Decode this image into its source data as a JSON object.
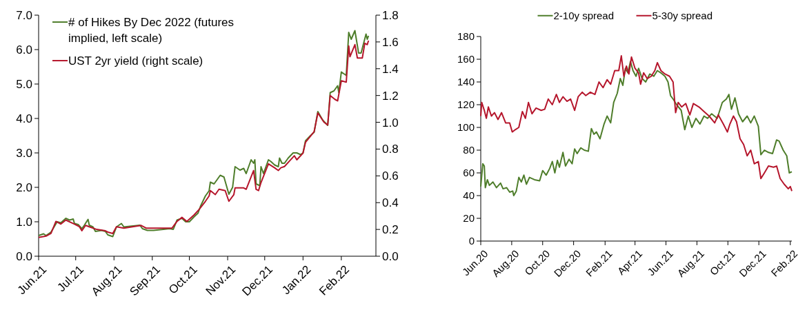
{
  "chart_data": [
    {
      "type": "line",
      "xlim": [
        "2021-06-01",
        "2022-03-01"
      ],
      "xticks": [
        {
          "value": "2021-06-01",
          "label": "Jun.21"
        },
        {
          "value": "2021-07-01",
          "label": "Jul.21"
        },
        {
          "value": "2021-08-01",
          "label": "Aug.21"
        },
        {
          "value": "2021-09-01",
          "label": "Sep.21"
        },
        {
          "value": "2021-10-01",
          "label": "Oct.21"
        },
        {
          "value": "2021-11-01",
          "label": "Nov.21"
        },
        {
          "value": "2021-12-01",
          "label": "Dec.21"
        },
        {
          "value": "2022-01-01",
          "label": "Jan.22"
        },
        {
          "value": "2022-02-01",
          "label": "Feb.22"
        }
      ],
      "ylim": [
        0,
        7
      ],
      "yticks": [
        {
          "value": 0,
          "label": "0.0"
        },
        {
          "value": 1,
          "label": "1.0"
        },
        {
          "value": 2,
          "label": "2.0"
        },
        {
          "value": 3,
          "label": "3.0"
        },
        {
          "value": 4,
          "label": "4.0"
        },
        {
          "value": 5,
          "label": "5.0"
        },
        {
          "value": 6,
          "label": "6.0"
        },
        {
          "value": 7,
          "label": "7.0"
        }
      ],
      "y2lim": [
        0,
        1.8
      ],
      "y2ticks": [
        {
          "value": 0,
          "label": "0.0"
        },
        {
          "value": 0.2,
          "label": "0.2"
        },
        {
          "value": 0.4,
          "label": "0.4"
        },
        {
          "value": 0.6,
          "label": "0.6"
        },
        {
          "value": 0.8,
          "label": "0.8"
        },
        {
          "value": 1,
          "label": "1.0"
        },
        {
          "value": 1.2,
          "label": "1.2"
        },
        {
          "value": 1.4,
          "label": "1.4"
        },
        {
          "value": 1.6,
          "label": "1.6"
        },
        {
          "value": 1.8,
          "label": "1.8"
        }
      ],
      "legend": "top left",
      "line_style": "solid",
      "series": [
        {
          "name": "# of Hikes By Dec 2022 (futures implied, left scale)",
          "color": "#4e7d2a",
          "x": [
            "2021-06-01",
            "2021-06-05",
            "2021-06-07",
            "2021-06-11",
            "2021-06-16",
            "2021-06-19",
            "2021-06-23",
            "2021-06-26",
            "2021-06-29",
            "2021-06-30",
            "2021-07-03",
            "2021-07-06",
            "2021-07-08",
            "2021-07-11",
            "2021-07-12",
            "2021-07-15",
            "2021-07-17",
            "2021-07-22",
            "2021-07-25",
            "2021-07-27",
            "2021-07-31",
            "2021-08-03",
            "2021-08-07",
            "2021-08-09",
            "2021-08-14",
            "2021-08-22",
            "2021-08-24",
            "2021-08-28",
            "2021-09-02",
            "2021-09-10",
            "2021-09-15",
            "2021-09-18",
            "2021-09-21",
            "2021-09-25",
            "2021-09-28",
            "2021-10-01",
            "2021-10-05",
            "2021-10-08",
            "2021-10-10",
            "2021-10-14",
            "2021-10-17",
            "2021-10-18",
            "2021-10-21",
            "2021-10-24",
            "2021-10-26",
            "2021-10-29",
            "2021-10-31",
            "2021-11-02",
            "2021-11-05",
            "2021-11-07",
            "2021-11-11",
            "2021-11-14",
            "2021-11-16",
            "2021-11-19",
            "2021-11-20",
            "2021-11-22",
            "2021-11-23",
            "2021-11-24",
            "2021-11-27",
            "2021-11-28",
            "2021-11-30",
            "2021-12-04",
            "2021-12-06",
            "2021-12-09",
            "2021-12-12",
            "2021-12-13",
            "2021-12-15",
            "2021-12-17",
            "2021-12-20",
            "2021-12-24",
            "2021-12-27",
            "2021-12-30",
            "2022-01-01",
            "2022-01-03",
            "2022-01-07",
            "2022-01-10",
            "2022-01-13",
            "2022-01-17",
            "2022-01-21",
            "2022-01-23",
            "2022-01-26",
            "2022-01-29",
            "2022-01-30",
            "2022-02-01",
            "2022-02-05",
            "2022-02-07",
            "2022-02-09",
            "2022-02-12",
            "2022-02-15",
            "2022-02-17",
            "2022-02-21",
            "2022-02-22",
            "2022-02-23"
          ],
          "values": [
            0.6,
            0.65,
            0.6,
            0.7,
            1.0,
            0.97,
            1.1,
            1.05,
            1.08,
            0.95,
            0.92,
            0.8,
            0.9,
            1.07,
            0.9,
            0.85,
            0.72,
            0.75,
            0.72,
            0.62,
            0.57,
            0.85,
            0.95,
            0.85,
            0.87,
            0.9,
            0.8,
            0.75,
            0.75,
            0.78,
            0.8,
            0.78,
            1.05,
            1.1,
            1.0,
            1.0,
            1.15,
            1.25,
            1.45,
            1.75,
            1.9,
            2.15,
            2.1,
            2.25,
            2.35,
            2.3,
            2.05,
            1.8,
            2.0,
            2.6,
            2.5,
            2.55,
            2.4,
            2.7,
            2.8,
            2.7,
            2.8,
            2.1,
            2.05,
            2.6,
            2.4,
            2.8,
            2.75,
            2.65,
            2.6,
            2.85,
            2.7,
            2.7,
            2.85,
            3.0,
            3.0,
            2.95,
            3.0,
            3.35,
            3.5,
            3.6,
            4.2,
            3.95,
            3.8,
            4.75,
            4.8,
            4.95,
            4.75,
            5.35,
            5.25,
            6.5,
            6.3,
            6.55,
            5.9,
            5.9,
            6.45,
            6.3,
            6.4
          ]
        },
        {
          "name": "UST 2yr yield (right scale)",
          "color": "#b5152b",
          "axis": "y2",
          "x": [
            "2021-06-01",
            "2021-06-07",
            "2021-06-11",
            "2021-06-15",
            "2021-06-19",
            "2021-06-23",
            "2021-06-30",
            "2021-07-04",
            "2021-07-06",
            "2021-07-09",
            "2021-07-12",
            "2021-07-18",
            "2021-07-25",
            "2021-07-27",
            "2021-07-31",
            "2021-08-03",
            "2021-08-09",
            "2021-08-16",
            "2021-08-23",
            "2021-08-27",
            "2021-09-06",
            "2021-09-17",
            "2021-09-21",
            "2021-09-25",
            "2021-09-29",
            "2021-10-05",
            "2021-10-09",
            "2021-10-14",
            "2021-10-17",
            "2021-10-18",
            "2021-10-22",
            "2021-10-25",
            "2021-10-30",
            "2021-11-02",
            "2021-11-06",
            "2021-11-07",
            "2021-11-14",
            "2021-11-16",
            "2021-11-22",
            "2021-11-24",
            "2021-11-26",
            "2021-11-28",
            "2021-12-04",
            "2021-12-09",
            "2021-12-12",
            "2021-12-14",
            "2021-12-17",
            "2021-12-21",
            "2021-12-25",
            "2021-12-27",
            "2022-01-01",
            "2022-01-03",
            "2022-01-10",
            "2022-01-13",
            "2022-01-18",
            "2022-01-21",
            "2022-01-23",
            "2022-01-27",
            "2022-01-29",
            "2022-02-01",
            "2022-02-05",
            "2022-02-07",
            "2022-02-08",
            "2022-02-12",
            "2022-02-14",
            "2022-02-18",
            "2022-02-20",
            "2022-02-22",
            "2022-02-23"
          ],
          "values": [
            0.14,
            0.15,
            0.17,
            0.26,
            0.24,
            0.27,
            0.24,
            0.22,
            0.19,
            0.23,
            0.22,
            0.2,
            0.19,
            0.18,
            0.17,
            0.22,
            0.21,
            0.22,
            0.23,
            0.21,
            0.21,
            0.21,
            0.26,
            0.29,
            0.26,
            0.31,
            0.35,
            0.41,
            0.45,
            0.49,
            0.46,
            0.5,
            0.49,
            0.41,
            0.46,
            0.51,
            0.51,
            0.5,
            0.64,
            0.5,
            0.49,
            0.55,
            0.69,
            0.66,
            0.64,
            0.66,
            0.67,
            0.71,
            0.75,
            0.72,
            0.77,
            0.85,
            0.93,
            1.07,
            1.0,
            0.98,
            1.2,
            1.17,
            1.16,
            1.31,
            1.3,
            1.57,
            1.49,
            1.58,
            1.48,
            1.48,
            1.59,
            1.58,
            1.61
          ]
        }
      ]
    },
    {
      "type": "line",
      "xlim": [
        "2020-06-01",
        "2022-02-04"
      ],
      "xticks": [
        {
          "value": "2020-06-01",
          "label": "Jun.20"
        },
        {
          "value": "2020-08-01",
          "label": "Aug.20"
        },
        {
          "value": "2020-10-01",
          "label": "Oct.20"
        },
        {
          "value": "2020-12-01",
          "label": "Dec.20"
        },
        {
          "value": "2021-02-01",
          "label": "Feb.21"
        },
        {
          "value": "2021-04-01",
          "label": "Apr.21"
        },
        {
          "value": "2021-06-01",
          "label": "Jun.21"
        },
        {
          "value": "2021-08-01",
          "label": "Aug.21"
        },
        {
          "value": "2021-10-01",
          "label": "Oct.21"
        },
        {
          "value": "2021-12-01",
          "label": "Dec.21"
        },
        {
          "value": "2022-02-01",
          "label": "Feb.22"
        }
      ],
      "ylim": [
        0,
        180
      ],
      "yticks": [
        0,
        20,
        40,
        60,
        80,
        100,
        120,
        140,
        160,
        180
      ],
      "legend": "top",
      "line_style": "solid",
      "series": [
        {
          "name": "2-10y spread",
          "color": "#4e7d2a",
          "x": [
            "2020-06-01",
            "2020-06-05",
            "2020-06-08",
            "2020-06-10",
            "2020-06-14",
            "2020-06-18",
            "2020-06-25",
            "2020-07-02",
            "2020-07-10",
            "2020-07-15",
            "2020-07-22",
            "2020-07-28",
            "2020-08-03",
            "2020-08-05",
            "2020-08-10",
            "2020-08-15",
            "2020-08-20",
            "2020-08-25",
            "2020-08-30",
            "2020-09-05",
            "2020-09-15",
            "2020-09-25",
            "2020-10-01",
            "2020-10-08",
            "2020-10-15",
            "2020-10-20",
            "2020-10-25",
            "2020-10-30",
            "2020-11-03",
            "2020-11-10",
            "2020-11-15",
            "2020-11-22",
            "2020-11-28",
            "2020-12-03",
            "2020-12-08",
            "2020-12-15",
            "2020-12-22",
            "2020-12-30",
            "2021-01-05",
            "2021-01-10",
            "2021-01-15",
            "2021-01-22",
            "2021-01-30",
            "2021-02-05",
            "2021-02-12",
            "2021-02-18",
            "2021-02-25",
            "2021-03-03",
            "2021-03-08",
            "2021-03-13",
            "2021-03-18",
            "2021-03-23",
            "2021-03-28",
            "2021-04-03",
            "2021-04-08",
            "2021-04-15",
            "2021-04-22",
            "2021-04-30",
            "2021-05-08",
            "2021-05-15",
            "2021-05-22",
            "2021-05-30",
            "2021-06-05",
            "2021-06-10",
            "2021-06-15",
            "2021-06-22",
            "2021-07-01",
            "2021-07-08",
            "2021-07-15",
            "2021-07-22",
            "2021-07-30",
            "2021-08-07",
            "2021-08-15",
            "2021-08-22",
            "2021-08-30",
            "2021-09-10",
            "2021-09-20",
            "2021-09-28",
            "2021-10-03",
            "2021-10-08",
            "2021-10-15",
            "2021-10-22",
            "2021-10-30",
            "2021-11-08",
            "2021-11-15",
            "2021-11-22",
            "2021-11-30",
            "2021-12-05",
            "2021-12-12",
            "2021-12-20",
            "2021-12-28",
            "2022-01-05",
            "2022-01-10",
            "2022-01-18",
            "2022-01-25",
            "2022-01-30",
            "2022-02-04"
          ],
          "values": [
            48,
            68,
            66,
            47,
            54,
            49,
            52,
            47,
            51,
            46,
            47,
            43,
            44,
            40,
            44,
            56,
            52,
            58,
            50,
            56,
            54,
            53,
            62,
            58,
            64,
            70,
            60,
            71,
            65,
            78,
            66,
            72,
            68,
            81,
            77,
            82,
            80,
            79,
            99,
            94,
            96,
            90,
            103,
            110,
            104,
            122,
            130,
            143,
            137,
            152,
            148,
            158,
            150,
            145,
            152,
            143,
            140,
            147,
            145,
            150,
            148,
            145,
            140,
            128,
            125,
            120,
            115,
            98,
            110,
            100,
            108,
            103,
            110,
            108,
            112,
            108,
            122,
            125,
            129,
            116,
            126,
            112,
            105,
            110,
            104,
            110,
            101,
            76,
            80,
            78,
            77,
            89,
            88,
            80,
            75,
            60,
            61
          ]
        },
        {
          "name": "5-30y spread",
          "color": "#b5152b",
          "x": [
            "2020-06-01",
            "2020-06-03",
            "2020-06-08",
            "2020-06-12",
            "2020-06-16",
            "2020-06-22",
            "2020-06-28",
            "2020-07-05",
            "2020-07-12",
            "2020-07-20",
            "2020-07-28",
            "2020-08-02",
            "2020-08-08",
            "2020-08-15",
            "2020-08-22",
            "2020-08-28",
            "2020-09-03",
            "2020-09-10",
            "2020-09-18",
            "2020-09-28",
            "2020-10-05",
            "2020-10-12",
            "2020-10-20",
            "2020-10-28",
            "2020-11-03",
            "2020-11-10",
            "2020-11-18",
            "2020-11-25",
            "2020-12-03",
            "2020-12-10",
            "2020-12-18",
            "2020-12-25",
            "2021-01-03",
            "2021-01-12",
            "2021-01-20",
            "2021-01-28",
            "2021-02-05",
            "2021-02-12",
            "2021-02-20",
            "2021-02-28",
            "2021-03-05",
            "2021-03-10",
            "2021-03-15",
            "2021-03-20",
            "2021-03-25",
            "2021-04-01",
            "2021-04-08",
            "2021-04-12",
            "2021-04-18",
            "2021-04-25",
            "2021-05-03",
            "2021-05-10",
            "2021-05-15",
            "2021-05-22",
            "2021-05-30",
            "2021-06-08",
            "2021-06-15",
            "2021-06-20",
            "2021-06-25",
            "2021-07-02",
            "2021-07-10",
            "2021-07-18",
            "2021-07-25",
            "2021-08-05",
            "2021-08-15",
            "2021-08-25",
            "2021-09-05",
            "2021-09-12",
            "2021-09-22",
            "2021-09-30",
            "2021-10-05",
            "2021-10-12",
            "2021-10-18",
            "2021-10-25",
            "2021-11-01",
            "2021-11-08",
            "2021-11-15",
            "2021-11-22",
            "2021-11-30",
            "2021-12-05",
            "2021-12-12",
            "2021-12-20",
            "2021-12-30",
            "2022-01-05",
            "2022-01-12",
            "2022-01-20",
            "2022-01-28",
            "2022-02-01",
            "2022-02-04"
          ],
          "values": [
            110,
            122,
            115,
            108,
            118,
            110,
            113,
            107,
            113,
            104,
            104,
            96,
            98,
            100,
            114,
            108,
            122,
            112,
            117,
            115,
            116,
            125,
            120,
            129,
            122,
            127,
            123,
            125,
            115,
            127,
            131,
            128,
            131,
            129,
            140,
            135,
            142,
            138,
            150,
            150,
            163,
            145,
            154,
            147,
            162,
            152,
            148,
            138,
            148,
            143,
            145,
            150,
            157,
            150,
            147,
            145,
            140,
            113,
            122,
            118,
            121,
            111,
            121,
            118,
            114,
            110,
            104,
            111,
            103,
            96,
            103,
            110,
            105,
            90,
            85,
            75,
            80,
            68,
            70,
            55,
            60,
            66,
            65,
            66,
            55,
            50,
            46,
            48,
            44
          ]
        }
      ]
    }
  ]
}
